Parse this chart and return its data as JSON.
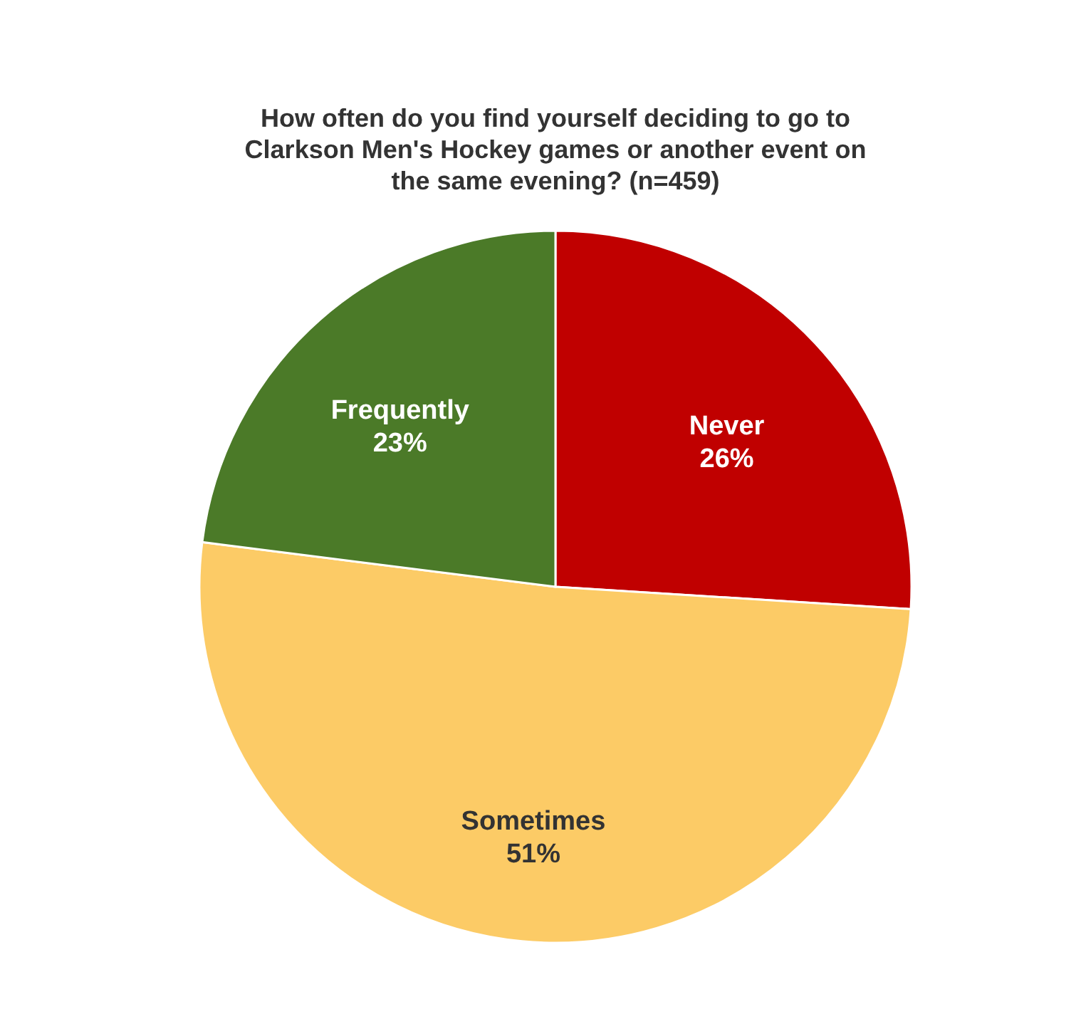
{
  "chart_data": {
    "type": "pie",
    "title": "How often do you find yourself deciding to go to Clarkson Men's Hockey games or another event on the same evening? (n=459)",
    "categories": [
      "Never",
      "Sometimes",
      "Frequently"
    ],
    "values": [
      26,
      51,
      23
    ],
    "colors": [
      "#c00000",
      "#fccb66",
      "#4b7a28"
    ],
    "value_labels": [
      "26%",
      "51%",
      "23%"
    ]
  }
}
